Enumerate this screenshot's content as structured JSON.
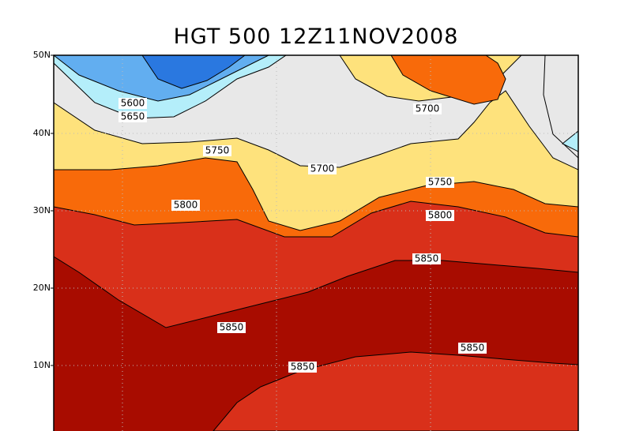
{
  "header": {
    "title": "HGT 500 12Z11NOV2008"
  },
  "map": {
    "lat_labels": [
      "50N",
      "40N",
      "30N",
      "20N",
      "10N"
    ],
    "contour_labels": [
      "5600",
      "5650",
      "5750",
      "5700",
      "5700",
      "5750",
      "5800",
      "5800",
      "5850",
      "5850",
      "5850",
      "5850"
    ]
  }
}
